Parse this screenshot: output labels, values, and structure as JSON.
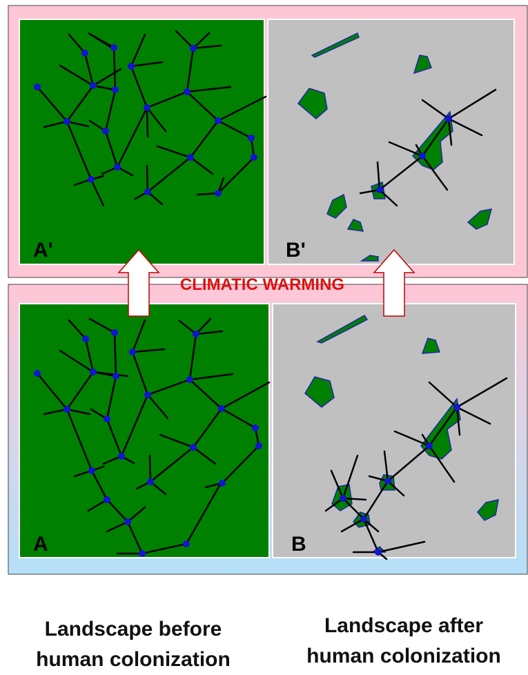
{
  "panels": {
    "top_left": {
      "label": "A'"
    },
    "top_right": {
      "label": "B'"
    },
    "bottom_left": {
      "label": "A"
    },
    "bottom_right": {
      "label": "B"
    }
  },
  "arrow_text": "CLIMATIC WARMING",
  "captions": {
    "left": {
      "line1": "Landscape before",
      "line2": "human colonization"
    },
    "right": {
      "line1": "Landscape after",
      "line2": "human colonization"
    }
  },
  "colors": {
    "forest": "#008000",
    "patch_outline": "#2222aa",
    "cleared": "#c0c0c0",
    "node": "#1414d2",
    "road": "#000000",
    "arrow_text": "#e01010",
    "top_band": "#ffc6d6",
    "bottom_gradient_start": "#ffc6d6",
    "bottom_gradient_end": "#b4e0f8"
  }
}
